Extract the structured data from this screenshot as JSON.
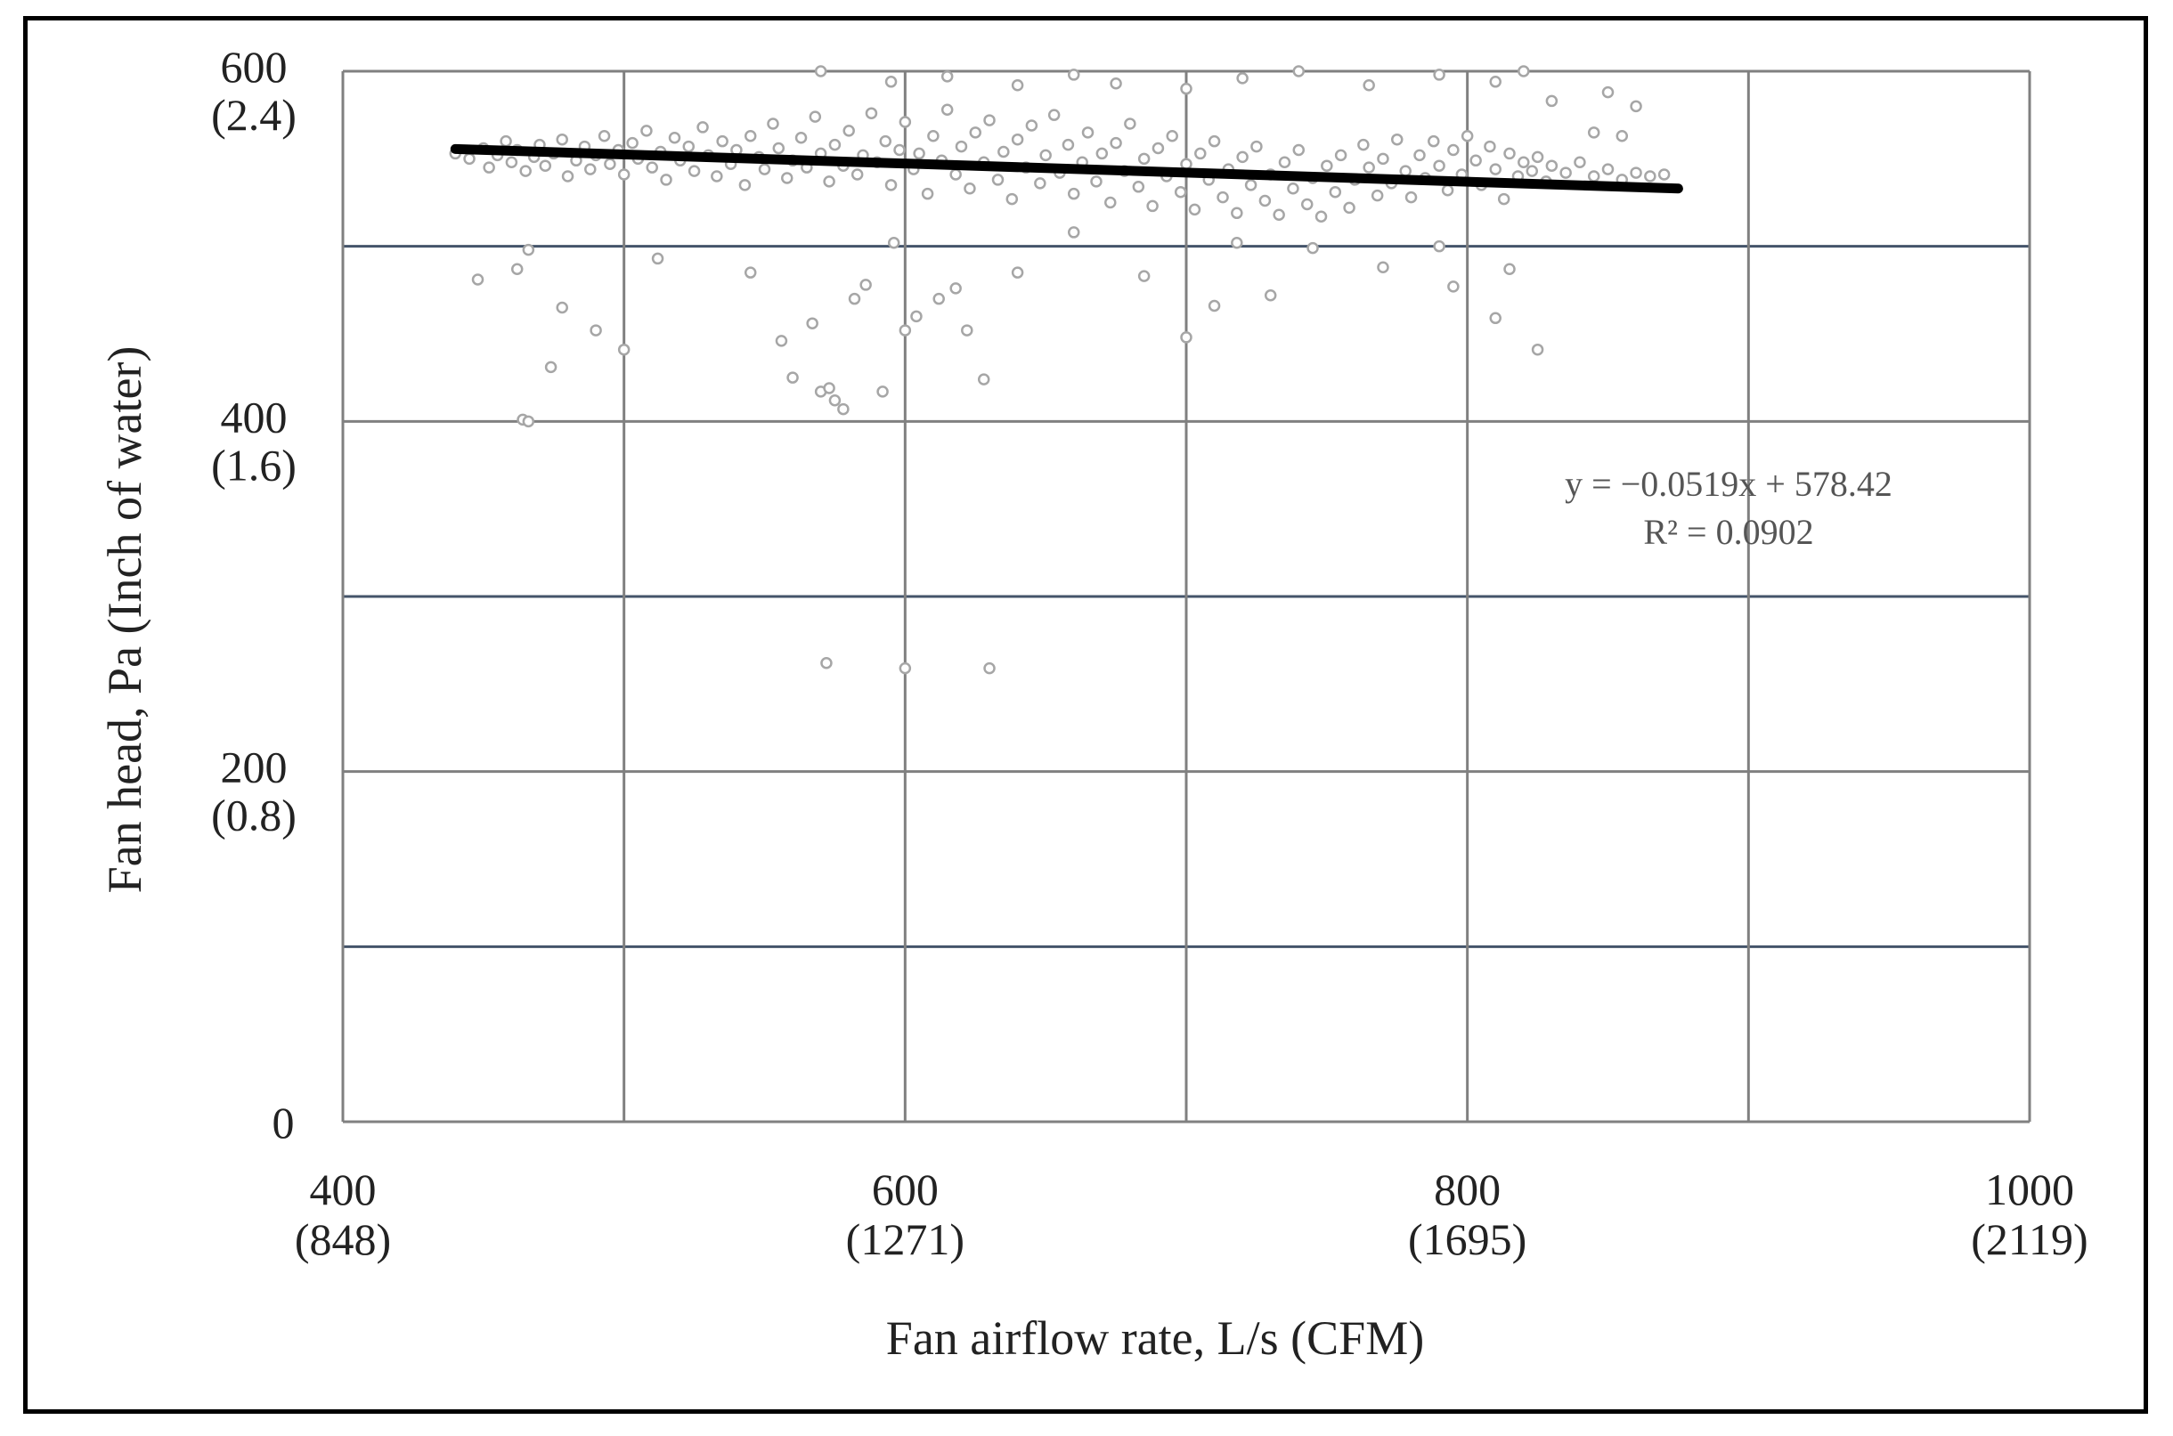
{
  "chart_data": {
    "type": "scatter",
    "title": "",
    "xlabel": "Fan airflow rate, L/s (CFM)",
    "ylabel": "Fan head, Pa (Inch of water)",
    "xlim": [
      400,
      1000
    ],
    "ylim": [
      0,
      600
    ],
    "grid": true,
    "legend": "none",
    "x_ticks": [
      {
        "value": 400,
        "label": "400",
        "sublabel": "(848)"
      },
      {
        "value": 600,
        "label": "600",
        "sublabel": "(1271)"
      },
      {
        "value": 800,
        "label": "800",
        "sublabel": "(1695)"
      },
      {
        "value": 1000,
        "label": "1000",
        "sublabel": "(2119)"
      }
    ],
    "y_ticks": [
      {
        "value": 0,
        "label": "0",
        "sublabel": ""
      },
      {
        "value": 200,
        "label": "200",
        "sublabel": "(0.8)"
      },
      {
        "value": 400,
        "label": "400",
        "sublabel": "(1.6)"
      },
      {
        "value": 600,
        "label": "600",
        "sublabel": "(2.4)"
      }
    ],
    "x_gridlines": [
      400,
      500,
      600,
      700,
      800,
      900,
      1000
    ],
    "y_gridlines": [
      0,
      100,
      200,
      300,
      400,
      500,
      600
    ],
    "point_color": "#a6a6a6",
    "trendline_color": "#000000",
    "trendline": {
      "slope": -0.0519,
      "intercept": 578.42,
      "x_range": [
        440,
        875
      ]
    },
    "equation": "y = −0.0519x  + 578.42",
    "r_squared": "R² = 0.0902",
    "series": [
      {
        "points": [
          [
            440,
            553
          ],
          [
            445,
            550
          ],
          [
            450,
            556
          ],
          [
            452,
            545
          ],
          [
            455,
            552
          ],
          [
            458,
            560
          ],
          [
            460,
            548
          ],
          [
            462,
            555
          ],
          [
            465,
            543
          ],
          [
            468,
            551
          ],
          [
            470,
            558
          ],
          [
            472,
            546
          ],
          [
            475,
            553
          ],
          [
            478,
            561
          ],
          [
            480,
            540
          ],
          [
            483,
            549
          ],
          [
            486,
            557
          ],
          [
            488,
            544
          ],
          [
            490,
            552
          ],
          [
            493,
            563
          ],
          [
            495,
            547
          ],
          [
            498,
            555
          ],
          [
            500,
            541
          ],
          [
            503,
            559
          ],
          [
            505,
            550
          ],
          [
            508,
            566
          ],
          [
            510,
            545
          ],
          [
            513,
            554
          ],
          [
            515,
            538
          ],
          [
            518,
            562
          ],
          [
            520,
            549
          ],
          [
            523,
            557
          ],
          [
            525,
            543
          ],
          [
            528,
            568
          ],
          [
            530,
            552
          ],
          [
            533,
            540
          ],
          [
            535,
            560
          ],
          [
            538,
            547
          ],
          [
            540,
            555
          ],
          [
            543,
            535
          ],
          [
            545,
            563
          ],
          [
            548,
            551
          ],
          [
            550,
            544
          ],
          [
            553,
            570
          ],
          [
            555,
            556
          ],
          [
            558,
            539
          ],
          [
            560,
            549
          ],
          [
            563,
            562
          ],
          [
            565,
            545
          ],
          [
            568,
            574
          ],
          [
            570,
            553
          ],
          [
            573,
            537
          ],
          [
            575,
            558
          ],
          [
            578,
            546
          ],
          [
            580,
            566
          ],
          [
            583,
            541
          ],
          [
            585,
            552
          ],
          [
            588,
            576
          ],
          [
            590,
            548
          ],
          [
            593,
            560
          ],
          [
            595,
            535
          ],
          [
            598,
            555
          ],
          [
            600,
            571
          ],
          [
            603,
            544
          ],
          [
            605,
            553
          ],
          [
            608,
            530
          ],
          [
            610,
            563
          ],
          [
            613,
            549
          ],
          [
            615,
            578
          ],
          [
            618,
            541
          ],
          [
            620,
            557
          ],
          [
            623,
            533
          ],
          [
            625,
            565
          ],
          [
            628,
            548
          ],
          [
            630,
            572
          ],
          [
            633,
            538
          ],
          [
            635,
            554
          ],
          [
            638,
            527
          ],
          [
            640,
            561
          ],
          [
            643,
            545
          ],
          [
            645,
            569
          ],
          [
            648,
            536
          ],
          [
            650,
            552
          ],
          [
            653,
            575
          ],
          [
            655,
            542
          ],
          [
            658,
            558
          ],
          [
            660,
            530
          ],
          [
            663,
            548
          ],
          [
            665,
            565
          ],
          [
            668,
            537
          ],
          [
            670,
            553
          ],
          [
            673,
            525
          ],
          [
            675,
            559
          ],
          [
            678,
            543
          ],
          [
            680,
            570
          ],
          [
            683,
            534
          ],
          [
            685,
            550
          ],
          [
            688,
            523
          ],
          [
            690,
            556
          ],
          [
            693,
            540
          ],
          [
            695,
            563
          ],
          [
            698,
            531
          ],
          [
            700,
            547
          ],
          [
            703,
            521
          ],
          [
            705,
            553
          ],
          [
            708,
            538
          ],
          [
            710,
            560
          ],
          [
            713,
            528
          ],
          [
            715,
            544
          ],
          [
            718,
            519
          ],
          [
            720,
            551
          ],
          [
            723,
            535
          ],
          [
            725,
            557
          ],
          [
            728,
            526
          ],
          [
            730,
            541
          ],
          [
            733,
            518
          ],
          [
            735,
            548
          ],
          [
            738,
            533
          ],
          [
            740,
            555
          ],
          [
            743,
            524
          ],
          [
            745,
            539
          ],
          [
            748,
            517
          ],
          [
            750,
            546
          ],
          [
            753,
            531
          ],
          [
            755,
            552
          ],
          [
            758,
            522
          ],
          [
            760,
            538
          ],
          [
            763,
            558
          ],
          [
            765,
            545
          ],
          [
            768,
            529
          ],
          [
            770,
            550
          ],
          [
            773,
            536
          ],
          [
            775,
            561
          ],
          [
            778,
            543
          ],
          [
            780,
            528
          ],
          [
            783,
            552
          ],
          [
            785,
            539
          ],
          [
            788,
            560
          ],
          [
            790,
            546
          ],
          [
            793,
            532
          ],
          [
            795,
            555
          ],
          [
            798,
            541
          ],
          [
            800,
            563
          ],
          [
            803,
            549
          ],
          [
            805,
            535
          ],
          [
            808,
            557
          ],
          [
            810,
            544
          ],
          [
            813,
            527
          ],
          [
            815,
            553
          ],
          [
            818,
            540
          ],
          [
            820,
            548
          ],
          [
            823,
            543
          ],
          [
            825,
            551
          ],
          [
            828,
            537
          ],
          [
            830,
            546
          ],
          [
            835,
            542
          ],
          [
            840,
            548
          ],
          [
            845,
            540
          ],
          [
            850,
            544
          ],
          [
            855,
            538
          ],
          [
            860,
            542
          ],
          [
            865,
            540
          ],
          [
            870,
            541
          ],
          [
            448,
            481
          ],
          [
            462,
            487
          ],
          [
            466,
            498
          ],
          [
            474,
            431
          ],
          [
            478,
            465
          ],
          [
            490,
            452
          ],
          [
            500,
            441
          ],
          [
            512,
            493
          ],
          [
            545,
            485
          ],
          [
            556,
            446
          ],
          [
            560,
            425
          ],
          [
            567,
            456
          ],
          [
            570,
            417
          ],
          [
            573,
            419
          ],
          [
            575,
            412
          ],
          [
            578,
            407
          ],
          [
            582,
            470
          ],
          [
            586,
            478
          ],
          [
            592,
            417
          ],
          [
            596,
            502
          ],
          [
            600,
            452
          ],
          [
            604,
            460
          ],
          [
            612,
            470
          ],
          [
            618,
            476
          ],
          [
            622,
            452
          ],
          [
            628,
            424
          ],
          [
            640,
            485
          ],
          [
            660,
            508
          ],
          [
            685,
            483
          ],
          [
            700,
            448
          ],
          [
            710,
            466
          ],
          [
            718,
            502
          ],
          [
            730,
            472
          ],
          [
            745,
            499
          ],
          [
            770,
            488
          ],
          [
            790,
            500
          ],
          [
            795,
            477
          ],
          [
            810,
            459
          ],
          [
            815,
            487
          ],
          [
            825,
            441
          ],
          [
            464,
            401
          ],
          [
            466,
            400
          ],
          [
            572,
            262
          ],
          [
            600,
            259
          ],
          [
            630,
            259
          ],
          [
            570,
            600
          ],
          [
            595,
            594
          ],
          [
            615,
            597
          ],
          [
            640,
            592
          ],
          [
            660,
            598
          ],
          [
            675,
            593
          ],
          [
            700,
            590
          ],
          [
            720,
            596
          ],
          [
            740,
            600
          ],
          [
            765,
            592
          ],
          [
            790,
            598
          ],
          [
            810,
            594
          ],
          [
            820,
            600
          ],
          [
            830,
            583
          ],
          [
            850,
            588
          ],
          [
            860,
            580
          ],
          [
            845,
            565
          ],
          [
            855,
            563
          ]
        ]
      }
    ]
  }
}
